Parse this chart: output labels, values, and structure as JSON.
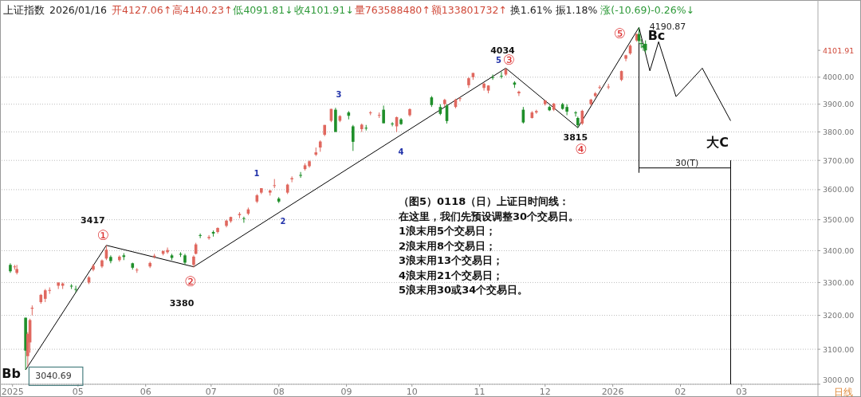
{
  "chart_data": {
    "type": "candlestick",
    "title": "上证指数",
    "subtitle": "2026/01/16",
    "log": "y",
    "grid": "y",
    "xlim": [
      "2025-03-27",
      "2026-04-05"
    ],
    "ylim": [
      3000,
      4300
    ],
    "xticks": [
      {
        "value": "2025-04-01",
        "label": "2025"
      },
      {
        "value": "2025-05-01",
        "label": "05"
      },
      {
        "value": "2025-06-01",
        "label": "06"
      },
      {
        "value": "2025-07-01",
        "label": "07"
      },
      {
        "value": "2025-08-01",
        "label": "08"
      },
      {
        "value": "2025-09-01",
        "label": "09"
      },
      {
        "value": "2025-10-01",
        "label": "10"
      },
      {
        "value": "2025-11-01",
        "label": "11"
      },
      {
        "value": "2025-12-01",
        "label": "12"
      },
      {
        "value": "2026-01-01",
        "label": "2026"
      },
      {
        "value": "2026-02-01",
        "label": "02"
      },
      {
        "value": "2026-03-01",
        "label": "03"
      }
    ],
    "yticks": [
      {
        "value": 3000,
        "label": "3000.00"
      },
      {
        "value": 3100,
        "label": "3100.00"
      },
      {
        "value": 3200,
        "label": "3200.00"
      },
      {
        "value": 3300,
        "label": "3300.00"
      },
      {
        "value": 3400,
        "label": "3400.00"
      },
      {
        "value": 3500,
        "label": "3500.00"
      },
      {
        "value": 3600,
        "label": "3600.00"
      },
      {
        "value": 3700,
        "label": "3700.00"
      },
      {
        "value": 3800,
        "label": "3800.00"
      },
      {
        "value": 3900,
        "label": "3900.00"
      },
      {
        "value": 4000,
        "label": "4000.00"
      },
      {
        "value": 4101.91,
        "label": "4101.91"
      }
    ],
    "x": [
      "2025-03-31",
      "2025-04-02",
      "2025-04-03",
      "2025-04-07",
      "2025-04-08",
      "2025-04-09",
      "2025-04-10",
      "2025-04-14",
      "2025-04-16",
      "2025-04-18",
      "2025-04-22",
      "2025-04-24",
      "2025-04-28",
      "2025-04-30",
      "2025-05-06",
      "2025-05-08",
      "2025-05-12",
      "2025-05-14",
      "2025-05-16",
      "2025-05-20",
      "2025-05-22",
      "2025-05-26",
      "2025-05-28",
      "2025-06-03",
      "2025-06-05",
      "2025-06-09",
      "2025-06-11",
      "2025-06-13",
      "2025-06-17",
      "2025-06-19",
      "2025-06-23",
      "2025-06-24",
      "2025-06-26",
      "2025-06-30",
      "2025-07-02",
      "2025-07-04",
      "2025-07-08",
      "2025-07-10",
      "2025-07-14",
      "2025-07-16",
      "2025-07-18",
      "2025-07-22",
      "2025-07-24",
      "2025-07-28",
      "2025-07-30",
      "2025-08-01",
      "2025-08-05",
      "2025-08-07",
      "2025-08-11",
      "2025-08-13",
      "2025-08-15",
      "2025-08-18",
      "2025-08-20",
      "2025-08-22",
      "2025-08-25",
      "2025-08-27",
      "2025-08-29",
      "2025-09-02",
      "2025-09-04",
      "2025-09-08",
      "2025-09-10",
      "2025-09-12",
      "2025-09-16",
      "2025-09-18",
      "2025-09-22",
      "2025-09-24",
      "2025-09-26",
      "2025-09-30",
      "2025-10-10",
      "2025-10-14",
      "2025-10-16",
      "2025-10-17",
      "2025-10-21",
      "2025-10-23",
      "2025-10-27",
      "2025-10-29",
      "2025-11-03",
      "2025-11-05",
      "2025-11-07",
      "2025-11-11",
      "2025-11-13",
      "2025-11-17",
      "2025-11-19",
      "2025-11-21",
      "2025-11-25",
      "2025-11-27",
      "2025-12-01",
      "2025-12-03",
      "2025-12-05",
      "2025-12-09",
      "2025-12-11",
      "2025-12-15",
      "2025-12-16",
      "2025-12-18",
      "2025-12-22",
      "2025-12-24",
      "2025-12-26",
      "2025-12-30",
      "2026-01-05",
      "2026-01-07",
      "2026-01-09",
      "2026-01-12",
      "2026-01-13",
      "2026-01-14",
      "2026-01-15",
      "2026-01-16"
    ],
    "ohlc": [
      [
        3355,
        3360,
        3330,
        3335
      ],
      [
        3350,
        3355,
        3340,
        3350
      ],
      [
        3330,
        3355,
        3325,
        3342
      ],
      [
        3193,
        3193,
        3040.69,
        3096
      ],
      [
        3080,
        3150,
        3050,
        3145
      ],
      [
        3120,
        3190,
        3090,
        3186
      ],
      [
        3220,
        3230,
        3200,
        3223
      ],
      [
        3240,
        3265,
        3235,
        3262
      ],
      [
        3250,
        3280,
        3240,
        3276
      ],
      [
        3275,
        3285,
        3265,
        3277
      ],
      [
        3290,
        3300,
        3280,
        3300
      ],
      [
        3290,
        3300,
        3280,
        3297
      ],
      [
        3290,
        3295,
        3280,
        3288
      ],
      [
        3280,
        3290,
        3270,
        3279
      ],
      [
        3300,
        3320,
        3295,
        3316
      ],
      [
        3340,
        3358,
        3335,
        3352
      ],
      [
        3350,
        3372,
        3345,
        3369
      ],
      [
        3375,
        3417,
        3370,
        3403
      ],
      [
        3380,
        3385,
        3360,
        3367
      ],
      [
        3370,
        3385,
        3365,
        3381
      ],
      [
        3385,
        3392,
        3370,
        3380
      ],
      [
        3360,
        3362,
        3340,
        3346
      ],
      [
        3340,
        3345,
        3330,
        3340
      ],
      [
        3350,
        3365,
        3345,
        3361
      ],
      [
        3380,
        3390,
        3375,
        3384
      ],
      [
        3390,
        3400,
        3385,
        3399
      ],
      [
        3395,
        3410,
        3390,
        3402
      ],
      [
        3385,
        3390,
        3370,
        3377
      ],
      [
        3390,
        3395,
        3380,
        3387
      ],
      [
        3385,
        3390,
        3355,
        3362
      ],
      [
        3355,
        3385,
        3347,
        3381
      ],
      [
        3390,
        3425,
        3388,
        3420
      ],
      [
        3450,
        3455,
        3440,
        3448
      ],
      [
        3440,
        3450,
        3435,
        3444
      ],
      [
        3460,
        3465,
        3445,
        3455
      ],
      [
        3460,
        3475,
        3455,
        3473
      ],
      [
        3480,
        3500,
        3475,
        3497
      ],
      [
        3495,
        3510,
        3490,
        3509
      ],
      [
        3515,
        3525,
        3505,
        3519
      ],
      [
        3505,
        3510,
        3490,
        3503
      ],
      [
        3520,
        3540,
        3515,
        3534
      ],
      [
        3560,
        3585,
        3555,
        3581
      ],
      [
        3590,
        3605,
        3585,
        3605
      ],
      [
        3590,
        3600,
        3580,
        3597
      ],
      [
        3615,
        3636,
        3605,
        3615
      ],
      [
        3570,
        3575,
        3555,
        3560
      ],
      [
        3590,
        3620,
        3585,
        3617
      ],
      [
        3635,
        3645,
        3625,
        3639
      ],
      [
        3650,
        3660,
        3640,
        3647
      ],
      [
        3670,
        3690,
        3665,
        3683
      ],
      [
        3680,
        3700,
        3675,
        3697
      ],
      [
        3720,
        3745,
        3715,
        3728
      ],
      [
        3745,
        3770,
        3730,
        3766
      ],
      [
        3790,
        3825,
        3785,
        3825
      ],
      [
        3840,
        3883,
        3835,
        3883
      ],
      [
        3880,
        3887,
        3800,
        3800
      ],
      [
        3840,
        3860,
        3835,
        3857
      ],
      [
        3870,
        3875,
        3845,
        3858
      ],
      [
        3820,
        3825,
        3733,
        3765
      ],
      [
        3810,
        3830,
        3800,
        3826
      ],
      [
        3815,
        3825,
        3805,
        3812
      ],
      [
        3870,
        3875,
        3860,
        3870
      ],
      [
        3860,
        3870,
        3850,
        3861
      ],
      [
        3880,
        3895,
        3831,
        3831
      ],
      [
        3830,
        3835,
        3820,
        3828
      ],
      [
        3820,
        3855,
        3800,
        3853
      ],
      [
        3845,
        3850,
        3825,
        3828
      ],
      [
        3860,
        3885,
        3855,
        3882
      ],
      [
        3925,
        3930,
        3890,
        3897
      ],
      [
        3890,
        3900,
        3860,
        3865
      ],
      [
        3900,
        3920,
        3890,
        3916
      ],
      [
        3895,
        3900,
        3830,
        3839
      ],
      [
        3890,
        3920,
        3885,
        3917
      ],
      [
        3920,
        3925,
        3910,
        3922
      ],
      [
        3970,
        4000,
        3960,
        3996
      ],
      [
        4000,
        4016,
        3990,
        4016
      ],
      [
        3960,
        3980,
        3950,
        3976
      ],
      [
        3950,
        3970,
        3940,
        3969
      ],
      [
        4000,
        4010,
        3990,
        3998
      ],
      [
        4005,
        4020,
        3995,
        4002
      ],
      [
        4010,
        4034,
        4005,
        4029
      ],
      [
        3980,
        3985,
        3960,
        3972
      ],
      [
        3940,
        3950,
        3930,
        3946
      ],
      [
        3880,
        3890,
        3830,
        3834
      ],
      [
        3850,
        3875,
        3848,
        3870
      ],
      [
        3870,
        3880,
        3865,
        3875
      ],
      [
        3900,
        3915,
        3895,
        3914
      ],
      [
        3890,
        3895,
        3875,
        3878
      ],
      [
        3880,
        3905,
        3875,
        3902
      ],
      [
        3900,
        3905,
        3880,
        3883
      ],
      [
        3890,
        3900,
        3860,
        3873
      ],
      [
        3870,
        3875,
        3855,
        3867
      ],
      [
        3850,
        3855,
        3815,
        3824
      ],
      [
        3830,
        3880,
        3825,
        3876
      ],
      [
        3900,
        3920,
        3895,
        3917
      ],
      [
        3930,
        3945,
        3925,
        3940
      ],
      [
        3960,
        3970,
        3955,
        3963
      ],
      [
        3965,
        3975,
        3955,
        3965
      ],
      [
        3990,
        4025,
        3985,
        4023
      ],
      [
        4070,
        4085,
        4060,
        4083
      ],
      [
        4090,
        4125,
        4085,
        4120
      ],
      [
        4140,
        4168,
        4135,
        4165
      ],
      [
        4165,
        4190.87,
        4130,
        4138
      ],
      [
        4130,
        4145,
        4110,
        4126
      ],
      [
        4120,
        4130,
        4100,
        4113
      ],
      [
        4127.06,
        4140.23,
        4091.81,
        4101.91
      ]
    ],
    "series": [
      {
        "type": "line",
        "color": "#000000",
        "x": [
          "2025-04-07",
          "2025-05-14",
          "2025-06-23",
          "2025-11-13",
          "2025-12-16",
          "2026-01-13",
          "2026-01-18",
          "2026-01-22",
          "2026-01-30",
          "2026-02-11",
          "2026-02-24"
        ],
        "values": [
          3040.69,
          3417,
          3349,
          4034,
          3815,
          4190.87,
          4024,
          4135,
          3928,
          4034,
          3840
        ]
      },
      {
        "type": "line",
        "color": "#000000",
        "x": [
          "2026-01-13",
          "2026-01-13",
          "2026-01-13",
          "2026-02-24",
          "2026-02-24",
          "2026-02-24"
        ],
        "values": [
          4190.87,
          3658,
          3674,
          3674,
          3700,
          3000
        ]
      }
    ],
    "annotations": [
      {
        "text": "3417",
        "x": "2025-05-14",
        "y": 3417
      },
      {
        "text": "①",
        "x": "2025-05-14",
        "y": 3417
      },
      {
        "text": "②",
        "x": "2025-06-23",
        "y": 3349
      },
      {
        "text": "4034",
        "x": "2025-11-13",
        "y": 4034
      },
      {
        "text": "5",
        "x": "2025-11-13",
        "y": 4034
      },
      {
        "text": "③",
        "x": "2025-11-13",
        "y": 4034
      },
      {
        "text": "3815",
        "x": "2025-12-16",
        "y": 3815
      },
      {
        "text": "④",
        "x": "2025-12-16",
        "y": 3815
      },
      {
        "text": "⑤",
        "x": "2026-01-13",
        "y": 4190.87
      },
      {
        "text": "Bc",
        "x": "2026-01-13",
        "y": 4190.87
      },
      {
        "text": "4190.87",
        "x": "2026-01-13",
        "y": 4190.87
      },
      {
        "text": "30(T)",
        "x": "2026-02-04",
        "y": 3674
      },
      {
        "text": "3040.69",
        "x": "2025-04-07",
        "y": 3040.69
      },
      {
        "text": "Bb",
        "x": "2025-04-07",
        "y": 3040.69
      },
      "3380",
      "1",
      "2",
      "3",
      "4",
      "大C",
      "开4127.06↑",
      "高4140.23↑",
      "低4091.81↓",
      "收4101.91↓",
      "量763588480↑",
      "额133801732↑",
      "换1.61%",
      "振1.18%",
      "涨(-10.69)-0.26%↓",
      "（图5）0118（日）上证日时间线：",
      "在这里，我们先预设调整30个交易日。",
      "1浪末用5个交易日；",
      "2浪末用8个交易日；",
      "3浪末用13个交易日；",
      "4浪末用21个交易日；",
      "5浪末用30或34个交易日。",
      "日线"
    ]
  }
}
